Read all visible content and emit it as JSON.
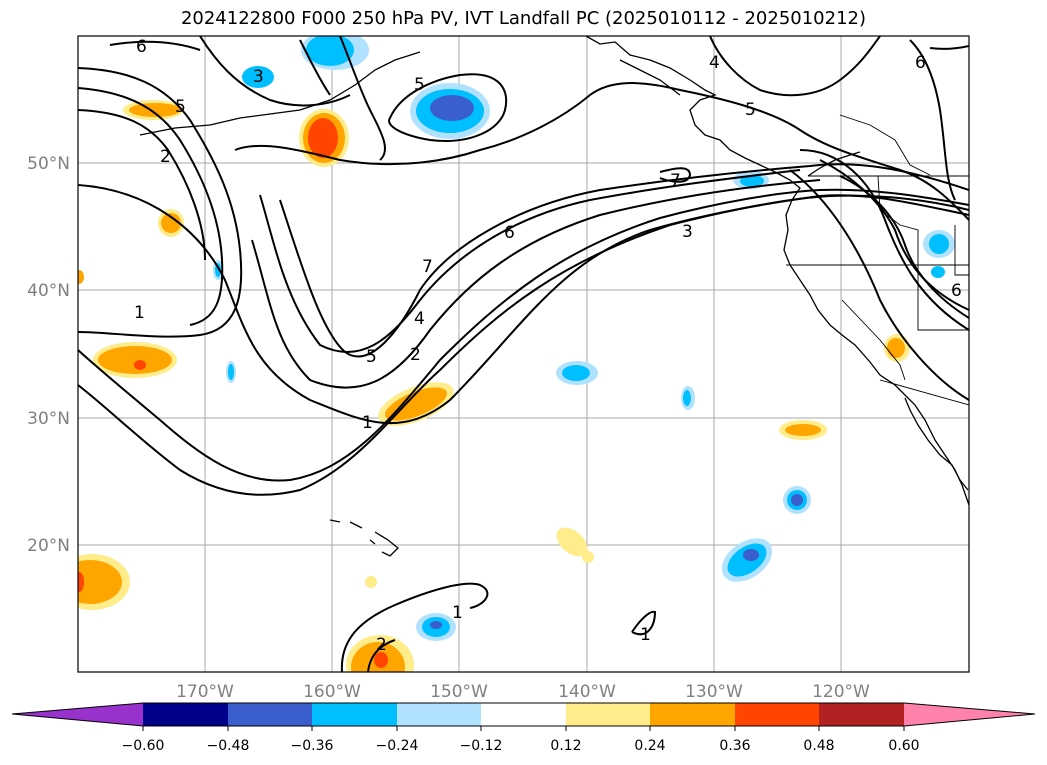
{
  "title": "2024122800 F000 250 hPa PV, IVT Landfall PC (2025010112 - 2025010212)",
  "map": {
    "lat_ticks": [
      "50°N",
      "40°N",
      "30°N",
      "20°N"
    ],
    "lon_ticks": [
      "170°W",
      "160°W",
      "150°W",
      "140°W",
      "130°W",
      "120°W"
    ],
    "contour_labels": [
      "6",
      "3",
      "5",
      "4",
      "5",
      "6",
      "5",
      "2",
      "7",
      "6",
      "3",
      "1",
      "7",
      "4",
      "5",
      "2",
      "1",
      "6",
      "1",
      "2",
      "1"
    ]
  },
  "colorbar": {
    "colors": [
      "#9932cc",
      "#00008b",
      "#3a5fcd",
      "#00bfff",
      "#b0e2ff",
      "#ffffff",
      "#ffec8b",
      "#ffa500",
      "#ff4500",
      "#b22222",
      "#ff82ab"
    ],
    "labels": [
      "−0.60",
      "−0.48",
      "−0.36",
      "−0.24",
      "−0.12",
      "0.12",
      "0.24",
      "0.36",
      "0.48",
      "0.60"
    ]
  }
}
